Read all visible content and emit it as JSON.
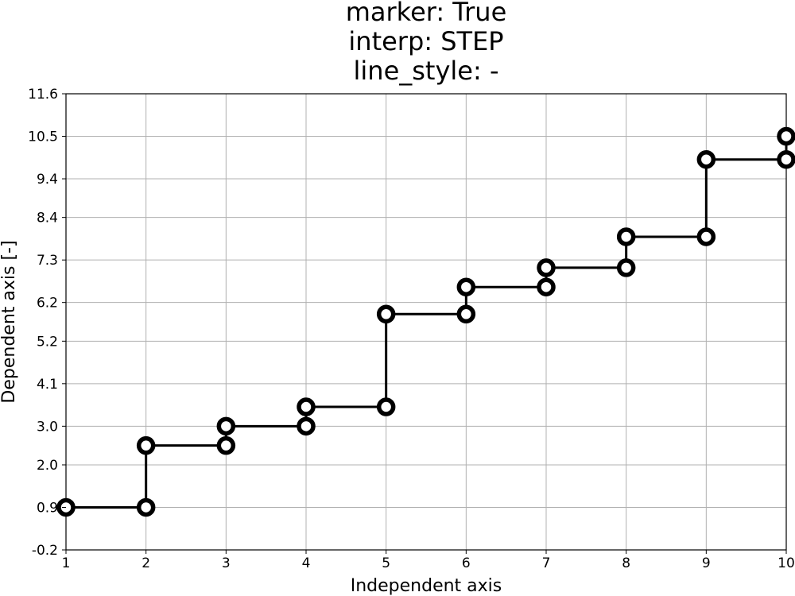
{
  "chart_data": {
    "type": "line",
    "title_lines": [
      "marker: True",
      "interp: STEP",
      "line_style: -"
    ],
    "xlabel": "Independent axis",
    "ylabel": "Dependent axis [-]",
    "xlim": [
      1,
      10
    ],
    "ylim": [
      -0.2,
      11.6
    ],
    "x_ticks": [
      "1",
      "2",
      "3",
      "4",
      "5",
      "6",
      "7",
      "8",
      "9",
      "10"
    ],
    "y_ticks": [
      "-0.2",
      "0.9",
      "2.0",
      "3.0",
      "4.1",
      "5.2",
      "6.2",
      "7.3",
      "8.4",
      "9.4",
      "10.5",
      "11.6"
    ],
    "grid": true,
    "interpolation": "step-post",
    "line_color": "#000000",
    "marker_fill": "#ffffff",
    "series": [
      {
        "x": [
          1,
          2,
          3,
          4,
          5,
          6,
          7,
          8,
          9,
          10
        ],
        "y": [
          0.9,
          2.5,
          3.0,
          3.5,
          5.9,
          6.6,
          7.1,
          7.9,
          9.9,
          10.5
        ]
      }
    ]
  }
}
